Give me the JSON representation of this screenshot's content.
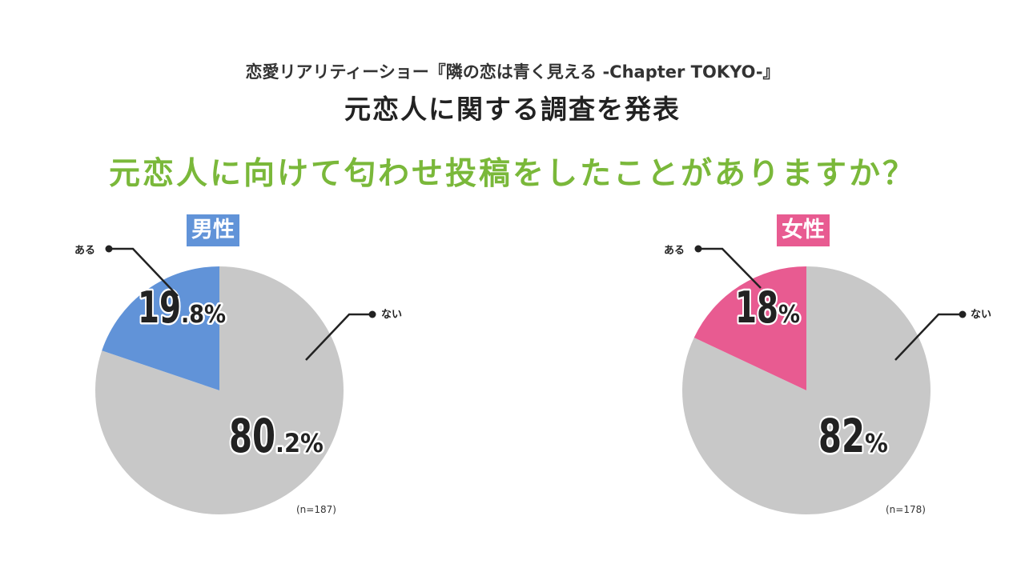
{
  "header": {
    "subtitle": "恋愛リアリティーショー『隣の恋は青く見える -Chapter TOKYO-』",
    "title": "元恋人に関する調査を発表",
    "question": "元恋人に向けて匂わせ投稿をしたことがありますか？"
  },
  "chart_data": [
    {
      "type": "pie",
      "title": "男性",
      "badge_color": "#6193d8",
      "sample": "(n=187)",
      "slices": [
        {
          "label": "ある",
          "value": 19.8,
          "display_main": "19",
          "display_small": ".8%",
          "color": "#6193d8"
        },
        {
          "label": "ない",
          "value": 80.2,
          "display_main": "80",
          "display_small": ".2%",
          "color": "#c8c8c8"
        }
      ]
    },
    {
      "type": "pie",
      "title": "女性",
      "badge_color": "#e85b91",
      "sample": "(n=178)",
      "slices": [
        {
          "label": "ある",
          "value": 18,
          "display_main": "18",
          "display_small": "%",
          "color": "#e85b91"
        },
        {
          "label": "ない",
          "value": 82,
          "display_main": "82",
          "display_small": "%",
          "color": "#c8c8c8"
        }
      ]
    }
  ]
}
